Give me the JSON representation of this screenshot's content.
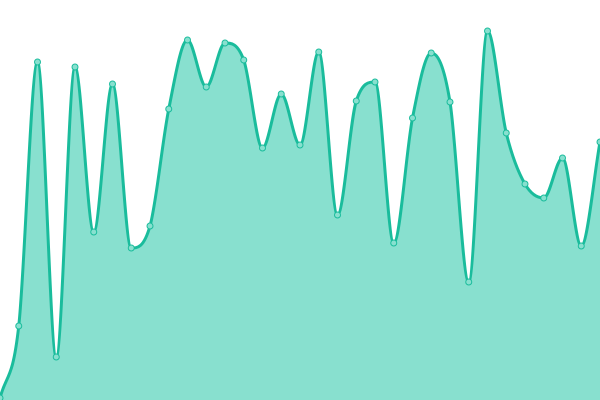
{
  "chart_data": {
    "type": "area",
    "title": "",
    "xlabel": "",
    "ylabel": "",
    "x": [
      0,
      1,
      2,
      3,
      4,
      5,
      6,
      7,
      8,
      9,
      10,
      11,
      12,
      13,
      14,
      15,
      16,
      17,
      18,
      19,
      20,
      21,
      22,
      23,
      24,
      25,
      26,
      27,
      28,
      29,
      30,
      31,
      32
    ],
    "values": [
      2,
      74,
      338,
      43,
      333,
      168,
      316,
      152,
      174,
      291,
      360,
      313,
      357,
      340,
      252,
      306,
      255,
      348,
      185,
      299,
      318,
      157,
      282,
      347,
      298,
      118,
      369,
      267,
      216,
      202,
      242,
      154,
      258
    ],
    "xlim": [
      0,
      32
    ],
    "ylim": [
      0,
      400
    ],
    "grid": false,
    "axes_visible": false,
    "legend": "none",
    "curve": "smooth",
    "show_points": true,
    "colors": {
      "line": "#1abc9c",
      "fill": "#88e0cf",
      "point_fill": "#88e0cf",
      "point_stroke": "#1abc9c"
    }
  }
}
